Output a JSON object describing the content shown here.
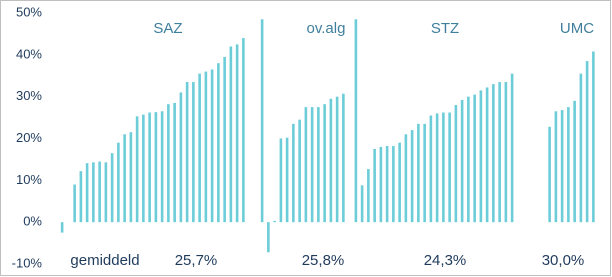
{
  "chart_data": {
    "type": "bar",
    "color": "#6ccdd9",
    "categories": [
      null,
      null,
      null,
      null,
      null,
      null,
      null,
      null,
      null,
      null,
      null,
      null,
      null,
      null,
      null,
      null,
      null,
      null,
      null,
      null,
      null,
      null,
      null,
      null,
      null,
      null,
      null,
      null,
      null,
      null,
      null,
      null,
      null,
      null,
      null,
      null,
      null,
      null,
      null,
      null,
      null,
      null,
      null,
      null,
      null,
      null,
      null,
      null,
      null,
      null,
      null,
      null,
      null,
      null,
      null,
      null,
      null,
      null,
      null,
      null,
      null,
      null,
      null,
      null,
      null,
      null,
      null,
      null,
      null,
      null,
      null,
      null,
      null,
      null,
      null,
      null,
      null,
      null,
      null,
      null,
      null,
      null,
      null,
      null,
      null,
      null
    ],
    "values": [
      -2.5,
      null,
      9,
      12.2,
      14.1,
      14.3,
      14.5,
      14.3,
      16.5,
      19,
      21,
      21.5,
      25.3,
      25.7,
      26.2,
      26.3,
      26.5,
      28.2,
      28.5,
      31,
      33.5,
      33.5,
      35.5,
      36,
      36.5,
      38,
      39.5,
      42,
      42.5,
      44,
      null,
      null,
      48.5,
      -7.2,
      0.3,
      20,
      20.2,
      23.5,
      24.5,
      27.5,
      27.5,
      27.5,
      28.2,
      29.5,
      30,
      30.7,
      null,
      48.5,
      8.8,
      12.7,
      17.5,
      18,
      18.2,
      18.2,
      19,
      21,
      22,
      23.5,
      23.5,
      25.5,
      26,
      26.2,
      26.2,
      28,
      29.2,
      30,
      30.5,
      31.5,
      32.2,
      33,
      33.5,
      33.5,
      35.5,
      null,
      null,
      null,
      null,
      null,
      22.8,
      26.5,
      26.8,
      27.5,
      29,
      35.5,
      38.5,
      40.8
    ],
    "ylim": [
      -10,
      50
    ],
    "yticks": [
      {
        "value": -10,
        "label": "-10%"
      },
      {
        "value": 0,
        "label": "0%"
      },
      {
        "value": 10,
        "label": "10%"
      },
      {
        "value": 20,
        "label": "20%"
      },
      {
        "value": 30,
        "label": "30%"
      },
      {
        "value": 40,
        "label": "40%"
      },
      {
        "value": 50,
        "label": "50%"
      }
    ],
    "grid": false,
    "group_labels": [
      "SAZ",
      "ov.alg",
      "STZ",
      "UMC"
    ],
    "average_label": "gemiddeld",
    "averages": [
      "25,7%",
      "25,8%",
      "24,3%",
      "30,0%"
    ]
  }
}
